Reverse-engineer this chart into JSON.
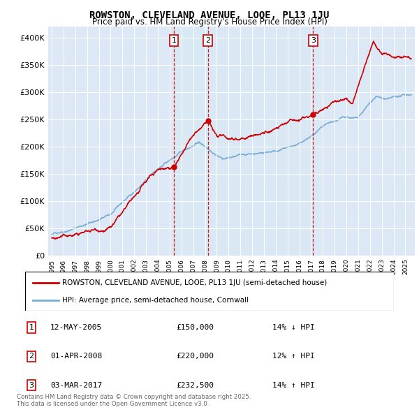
{
  "title1": "ROWSTON, CLEVELAND AVENUE, LOOE, PL13 1JU",
  "title2": "Price paid vs. HM Land Registry's House Price Index (HPI)",
  "legend_label1": "ROWSTON, CLEVELAND AVENUE, LOOE, PL13 1JU (semi-detached house)",
  "legend_label2": "HPI: Average price, semi-detached house, Cornwall",
  "line1_color": "#cc0000",
  "line2_color": "#7aadd4",
  "shade_color": "#d8e8f5",
  "transactions": [
    {
      "num": 1,
      "date": "12-MAY-2005",
      "price": 150000,
      "pct": "14%",
      "dir": "↓",
      "x_year": 2005.36
    },
    {
      "num": 2,
      "date": "01-APR-2008",
      "price": 220000,
      "pct": "12%",
      "dir": "↑",
      "x_year": 2008.25
    },
    {
      "num": 3,
      "date": "03-MAR-2017",
      "price": 232500,
      "pct": "14%",
      "dir": "↑",
      "x_year": 2017.17
    }
  ],
  "footnote": "Contains HM Land Registry data © Crown copyright and database right 2025.\nThis data is licensed under the Open Government Licence v3.0.",
  "ylim": [
    0,
    420000
  ],
  "xlim_start": 1994.7,
  "xlim_end": 2025.8,
  "background_color": "#dce8f5"
}
